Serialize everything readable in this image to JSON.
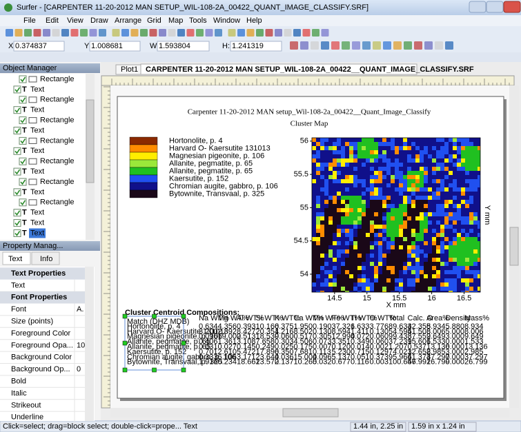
{
  "window": {
    "title": "Surfer - [CARPENTER 11-20-2012 MAN SETUP_WIL-108-2A_00422_QUANT_IMAGE_CLASSIFY.SRF]"
  },
  "menu": [
    "File",
    "Edit",
    "View",
    "Draw",
    "Arrange",
    "Grid",
    "Map",
    "Tools",
    "Window",
    "Help"
  ],
  "coords": [
    {
      "label": "X:",
      "value": "0.374837"
    },
    {
      "label": "Y:",
      "value": "1.008681"
    },
    {
      "label": "W:",
      "value": "1.593804"
    },
    {
      "label": "H:",
      "value": "1.241319"
    }
  ],
  "object_manager": {
    "title": "Object Manager",
    "items": [
      "Rectangle",
      "Text",
      "Rectangle",
      "Text",
      "Rectangle",
      "Text",
      "Rectangle",
      "Text",
      "Rectangle",
      "Text",
      "Rectangle",
      "Text",
      "Rectangle",
      "Text",
      "Text",
      "Text"
    ]
  },
  "property_manager": {
    "title": "Property Manag...",
    "tabs": [
      "Text",
      "Info"
    ],
    "sections": [
      {
        "title": "Text Properties",
        "rows": [
          {
            "label": "Text"
          }
        ]
      },
      {
        "title": "Font Properties",
        "rows": [
          {
            "label": "Font",
            "value": "A."
          },
          {
            "label": "Size (points)"
          },
          {
            "label": "Foreground Color"
          },
          {
            "label": "Foreground Opa...",
            "value": "10"
          },
          {
            "label": "Background Color"
          },
          {
            "label": "Background Op...",
            "value": "0"
          },
          {
            "label": "Bold"
          },
          {
            "label": "Italic"
          },
          {
            "label": "Strikeout"
          },
          {
            "label": "Underline"
          }
        ]
      }
    ]
  },
  "doc_tabs": [
    "Plot1",
    "CARPENTER 11-20-2012 MAN SETUP_WIL-108-2A_00422__QUANT_IMAGE_CLASSIFY.SRF"
  ],
  "plot": {
    "title": "Carpenter 11-20-2012 MAN setup_Wil-108-2a_00422__Quant_Image_Classify",
    "subtitle": "Cluster Map",
    "legend": [
      {
        "label": "Hortonolite, p. 4",
        "color": "#8b2a00"
      },
      {
        "label": "Harvard O- Kaersutite 131013",
        "color": "#ff8c00"
      },
      {
        "label": "Magnesian pigeonite, p. 106",
        "color": "#ffee00"
      },
      {
        "label": "Allanite, pegmatite, p. 65",
        "color": "#9be83a"
      },
      {
        "label": "Allanite, pegmatite, p. 65",
        "color": "#20c020"
      },
      {
        "label": "Kaersutite, p. 152",
        "color": "#2050f0"
      },
      {
        "label": "Chromian augite, gabbro, p. 106",
        "color": "#10108a"
      },
      {
        "label": "Bytownite, Transvaal, p. 325",
        "color": "#1a0818"
      }
    ],
    "xlabel": "X mm",
    "ylabel": "Y mm",
    "xlim": [
      14.15,
      16.75
    ],
    "ylim": [
      53.73,
      56.05
    ],
    "xticks": [
      14.5,
      15,
      15.5,
      16,
      16.5
    ],
    "yticks": [
      54,
      54.5,
      55,
      55.5,
      56
    ]
  },
  "table": {
    "title": "Cluster Centroid Compositions:",
    "header": [
      "Match (DHZ MDB)",
      "Na WT%",
      "Mg WT%",
      "Al WT%",
      "Si WT%",
      "K WT%",
      "Ca WT%",
      "Mn WT%",
      "Fe WT%",
      "Ti WT%",
      "O WT%",
      "Total",
      "Calc. O",
      "Area%",
      "Density",
      "Mass%"
    ],
    "rows": [
      [
        "Hortonolite, p. 4",
        "0.634",
        "4.356",
        "0.393",
        "10.166",
        "0.375",
        "1.950",
        "0.190",
        "37.326",
        "1.633",
        "3.776",
        "89.634",
        "32.355",
        "8.934",
        "5.880",
        "8.934"
      ],
      [
        "Harvard O- Kaersutite 131013",
        "3.200",
        "2.892",
        "8.427",
        "20.354",
        "1.216",
        "8.502",
        "0.130",
        "8.594",
        "1.411",
        "0.130",
        "54.595",
        "41.508",
        "8.006",
        "5.000",
        "8.006"
      ],
      [
        "Magnesian pigeonite, p. 106",
        "0.096",
        "19.002",
        "0.513",
        "18.539",
        "0.060",
        "0.517",
        "0.305",
        "12.994",
        "0.072",
        "0.060",
        "99.438",
        "37.552",
        "9.649",
        "3.000",
        "9.649"
      ],
      [
        "Allanite, pegmatite, p. 65",
        "0.406",
        "1.361",
        "3.108",
        "7.658",
        "0.303",
        "4.506",
        "0.073",
        "3.351",
        "0.349",
        "0.060",
        "37.239",
        "15.606",
        "1.533",
        "0.000",
        "1.533"
      ],
      [
        "Allanite, pegmatite, p. 65",
        "0.031",
        "0.027",
        "0.145",
        "0.249",
        "0.025",
        "0.175",
        "0.007",
        "0.120",
        "0.014",
        "0.002",
        "1.207",
        "0.537",
        "13.136",
        "0.000",
        "13.136"
      ],
      [
        "Kaersutite, p. 152",
        "0.701",
        "2.610",
        "5.472",
        "17.896",
        "0.350",
        "7.681",
        "0.113",
        "5.230",
        "0.715",
        "0.129",
        "74.021",
        "32.658",
        "2.985",
        "3.000",
        "2.985"
      ],
      [
        "Chromian augite, gabbro, p. 106",
        "0.333",
        "6.106",
        "3.171",
        "23.644",
        "0.036",
        "15.004",
        "0.096",
        "5.137",
        "0.051",
        "0.373",
        "95.966",
        "41.374",
        "37.297",
        "0.000",
        "37.297"
      ],
      [
        "Bytownite, Transvaal, p. 325",
        "1.916",
        "0.234",
        "18.661",
        "23.572",
        "0.137",
        "10.265",
        "0.032",
        "0.677",
        "0.116",
        "0.003",
        "100.657",
        "46.991",
        "26.799",
        "0.000",
        "26.799"
      ]
    ]
  },
  "status": [
    "Click=select; drag=block select; double-click=prope... Text",
    "1.44 in, 2.25 in",
    "1.59 in x 1.24 in"
  ]
}
